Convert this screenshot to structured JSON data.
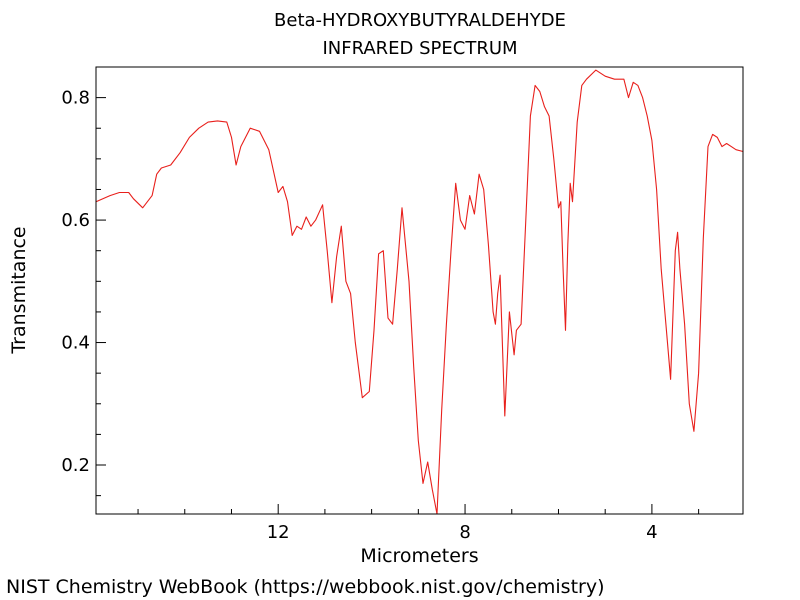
{
  "chart_data": {
    "type": "line",
    "title": "Beta-HYDROXYBUTYRALDEHYDE",
    "subtitle": "INFRARED SPECTRUM",
    "xlabel": "Micrometers",
    "ylabel": "Transmitance",
    "xlim": [
      15.9,
      2.05
    ],
    "ylim": [
      0.12,
      0.85
    ],
    "xticks": [
      12,
      8,
      4
    ],
    "yticks": [
      0.2,
      0.4,
      0.6,
      0.8
    ],
    "grid": false,
    "line_color": "#e8201c",
    "series": [
      {
        "x": [
          15.9,
          15.6,
          15.4,
          15.2,
          15.1,
          14.9,
          14.7,
          14.6,
          14.5,
          14.3,
          14.1,
          13.9,
          13.7,
          13.5,
          13.3,
          13.1,
          13.0,
          12.9,
          12.8,
          12.6,
          12.4,
          12.2,
          12.1,
          12.0,
          11.9,
          11.8,
          11.7,
          11.6,
          11.5,
          11.4,
          11.3,
          11.2,
          11.05,
          10.95,
          10.85,
          10.75,
          10.65,
          10.55,
          10.45,
          10.35,
          10.2,
          10.05,
          9.95,
          9.85,
          9.75,
          9.65,
          9.55,
          9.45,
          9.35,
          9.2,
          9.1,
          9.0,
          8.9,
          8.8,
          8.7,
          8.6,
          8.5,
          8.4,
          8.3,
          8.2,
          8.1,
          8.0,
          7.9,
          7.8,
          7.7,
          7.6,
          7.5,
          7.4,
          7.35,
          7.3,
          7.25,
          7.15,
          7.05,
          6.95,
          6.9,
          6.8,
          6.7,
          6.6,
          6.5,
          6.4,
          6.3,
          6.2,
          6.1,
          6.0,
          5.95,
          5.9,
          5.85,
          5.8,
          5.75,
          5.7,
          5.6,
          5.5,
          5.4,
          5.2,
          5.0,
          4.8,
          4.6,
          4.5,
          4.4,
          4.3,
          4.2,
          4.1,
          4.0,
          3.9,
          3.8,
          3.7,
          3.6,
          3.5,
          3.45,
          3.4,
          3.3,
          3.2,
          3.1,
          3.0,
          2.9,
          2.8,
          2.7,
          2.6,
          2.5,
          2.4,
          2.3,
          2.2,
          2.05
        ],
        "values": [
          0.63,
          0.64,
          0.645,
          0.645,
          0.635,
          0.62,
          0.64,
          0.675,
          0.685,
          0.69,
          0.71,
          0.735,
          0.75,
          0.76,
          0.762,
          0.76,
          0.735,
          0.69,
          0.72,
          0.75,
          0.745,
          0.715,
          0.68,
          0.645,
          0.655,
          0.63,
          0.575,
          0.59,
          0.585,
          0.605,
          0.59,
          0.6,
          0.625,
          0.55,
          0.465,
          0.54,
          0.59,
          0.5,
          0.48,
          0.4,
          0.31,
          0.32,
          0.42,
          0.545,
          0.55,
          0.44,
          0.43,
          0.52,
          0.62,
          0.5,
          0.36,
          0.24,
          0.17,
          0.205,
          0.16,
          0.12,
          0.29,
          0.43,
          0.55,
          0.66,
          0.6,
          0.585,
          0.64,
          0.61,
          0.675,
          0.65,
          0.56,
          0.45,
          0.43,
          0.48,
          0.51,
          0.28,
          0.45,
          0.38,
          0.42,
          0.43,
          0.6,
          0.77,
          0.82,
          0.81,
          0.785,
          0.77,
          0.7,
          0.62,
          0.63,
          0.52,
          0.42,
          0.56,
          0.66,
          0.63,
          0.76,
          0.82,
          0.83,
          0.845,
          0.835,
          0.83,
          0.83,
          0.8,
          0.825,
          0.82,
          0.8,
          0.77,
          0.73,
          0.65,
          0.52,
          0.43,
          0.34,
          0.55,
          0.58,
          0.52,
          0.43,
          0.3,
          0.255,
          0.35,
          0.57,
          0.72,
          0.74,
          0.735,
          0.72,
          0.725,
          0.72,
          0.715,
          0.712
        ]
      }
    ]
  },
  "footer": {
    "credit": "NIST Chemistry WebBook (https://webbook.nist.gov/chemistry)"
  }
}
